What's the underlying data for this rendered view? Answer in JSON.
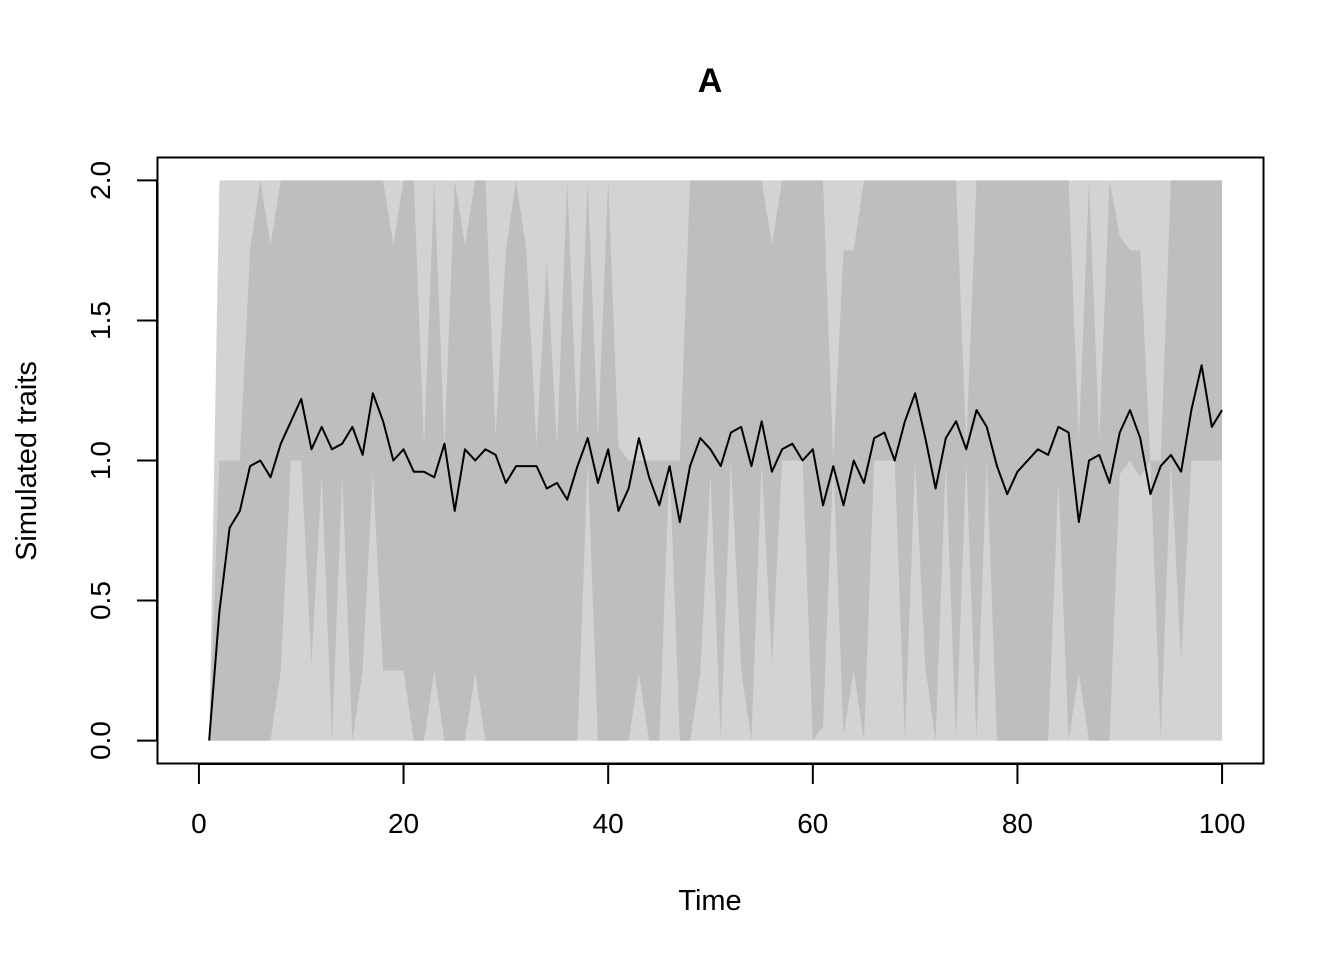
{
  "chart_data": {
    "type": "area",
    "title": "A",
    "xlabel": "Time",
    "ylabel": "Simulated traits",
    "xlim": [
      -4,
      104
    ],
    "ylim": [
      -0.08,
      2.08
    ],
    "x_ticks": [
      "0",
      "20",
      "40",
      "60",
      "80",
      "100"
    ],
    "y_ticks": [
      "0.0",
      "0.5",
      "1.0",
      "1.5",
      "2.0"
    ],
    "grid": false,
    "legend": "none",
    "colors": {
      "outer_band": "#d3d3d3",
      "inner_band": "#bebebe",
      "line": "#000000"
    },
    "x": [
      1,
      2,
      3,
      4,
      5,
      6,
      7,
      8,
      9,
      10,
      11,
      12,
      13,
      14,
      15,
      16,
      17,
      18,
      19,
      20,
      21,
      22,
      23,
      24,
      25,
      26,
      27,
      28,
      29,
      30,
      31,
      32,
      33,
      34,
      35,
      36,
      37,
      38,
      39,
      40,
      41,
      42,
      43,
      44,
      45,
      46,
      47,
      48,
      49,
      50,
      51,
      52,
      53,
      54,
      55,
      56,
      57,
      58,
      59,
      60,
      61,
      62,
      63,
      64,
      65,
      66,
      67,
      68,
      69,
      70,
      71,
      72,
      73,
      74,
      75,
      76,
      77,
      78,
      79,
      80,
      81,
      82,
      83,
      84,
      85,
      86,
      87,
      88,
      89,
      90,
      91,
      92,
      93,
      94,
      95,
      96,
      97,
      98,
      99,
      100
    ],
    "series": [
      {
        "name": "",
        "role": "band_min_max",
        "lower": [
          0,
          0,
          0,
          0,
          0,
          0,
          0,
          0,
          0,
          0,
          0,
          0,
          0,
          0,
          0,
          0,
          0,
          0,
          0,
          0,
          0,
          0,
          0,
          0,
          0,
          0,
          0,
          0,
          0,
          0,
          0,
          0,
          0,
          0,
          0,
          0,
          0,
          0,
          0,
          0,
          0,
          0,
          0,
          0,
          0,
          0,
          0,
          0,
          0,
          0,
          0,
          0,
          0,
          0,
          0,
          0,
          0,
          0,
          0,
          0,
          0,
          0,
          0,
          0,
          0,
          0,
          0,
          0,
          0,
          0,
          0,
          0,
          0,
          0,
          0,
          0,
          0,
          0,
          0,
          0,
          0,
          0,
          0,
          0,
          0,
          0,
          0,
          0,
          0,
          0,
          0,
          0,
          0,
          0,
          0,
          0,
          0,
          0,
          0,
          0
        ],
        "upper": [
          0,
          2,
          2,
          2,
          2,
          2,
          2,
          2,
          2,
          2,
          2,
          2,
          2,
          2,
          2,
          2,
          2,
          2,
          2,
          2,
          2,
          2,
          2,
          2,
          2,
          2,
          2,
          2,
          2,
          2,
          2,
          2,
          2,
          2,
          2,
          2,
          2,
          2,
          2,
          2,
          2,
          2,
          2,
          2,
          2,
          2,
          2,
          2,
          2,
          2,
          2,
          2,
          2,
          2,
          2,
          2,
          2,
          2,
          2,
          2,
          2,
          2,
          2,
          2,
          2,
          2,
          2,
          2,
          2,
          2,
          2,
          2,
          2,
          2,
          2,
          2,
          2,
          2,
          2,
          2,
          2,
          2,
          2,
          2,
          2,
          2,
          2,
          2,
          2,
          2,
          2,
          2,
          2,
          2,
          2,
          2,
          2,
          2,
          2,
          2
        ]
      },
      {
        "name": "",
        "role": "band_inner",
        "lower": [
          0,
          0,
          0,
          0,
          0,
          0,
          0,
          0.25,
          1,
          1,
          0.27,
          0.95,
          0,
          0.95,
          0,
          0.25,
          0.96,
          0.25,
          0.25,
          0.25,
          0,
          0,
          0.25,
          0,
          0,
          0,
          0.24,
          0,
          0,
          0,
          0,
          0,
          0,
          0,
          0,
          0,
          0,
          1,
          0,
          0,
          0,
          0,
          0.24,
          0,
          0,
          1,
          0,
          0,
          0.24,
          0.95,
          0,
          1,
          0.25,
          0,
          1,
          0.27,
          1,
          1,
          1,
          0,
          0.05,
          1,
          0.02,
          0.25,
          0,
          1,
          1,
          1,
          0,
          1,
          0.26,
          0,
          1,
          0,
          1,
          0,
          1,
          0,
          0,
          0,
          0,
          0,
          0,
          0.93,
          0,
          0.24,
          0,
          0,
          0,
          0.95,
          1,
          0.94,
          1,
          0,
          1,
          0.28,
          1,
          1,
          1,
          1
        ],
        "upper": [
          0,
          1,
          1,
          1,
          1.75,
          2,
          1.77,
          2,
          2,
          2,
          2,
          2,
          2,
          2,
          2,
          2,
          2,
          2,
          1.77,
          2,
          2,
          1.05,
          2,
          1.05,
          2,
          1.77,
          2,
          2,
          1.08,
          1.75,
          2,
          1.75,
          1.05,
          1.72,
          1.05,
          2,
          1.08,
          2,
          1.08,
          2,
          1.05,
          1,
          1,
          1,
          1,
          1,
          1,
          2,
          2,
          2,
          2,
          2,
          2,
          2,
          2,
          1.77,
          2,
          2,
          2,
          2,
          2,
          1,
          1.75,
          1.75,
          2,
          2,
          2,
          2,
          2,
          2,
          2,
          2,
          2,
          2,
          1.05,
          2,
          2,
          2,
          2,
          2,
          2,
          2,
          2,
          2,
          2,
          1.07,
          2,
          1.07,
          2,
          1.8,
          1.75,
          1.75,
          1,
          1,
          2,
          2,
          2,
          2,
          2,
          2
        ]
      },
      {
        "name": "",
        "role": "mean_line",
        "values": [
          0,
          0.46,
          0.76,
          0.82,
          0.98,
          1.0,
          0.94,
          1.06,
          1.14,
          1.22,
          1.04,
          1.12,
          1.04,
          1.06,
          1.12,
          1.02,
          1.24,
          1.14,
          1.0,
          1.04,
          0.96,
          0.96,
          0.94,
          1.06,
          0.82,
          1.04,
          1.0,
          1.04,
          1.02,
          0.92,
          0.98,
          0.98,
          0.98,
          0.9,
          0.92,
          0.86,
          0.98,
          1.08,
          0.92,
          1.04,
          0.82,
          0.9,
          1.08,
          0.94,
          0.84,
          0.98,
          0.78,
          0.98,
          1.08,
          1.04,
          0.98,
          1.1,
          1.12,
          0.98,
          1.14,
          0.96,
          1.04,
          1.06,
          1.0,
          1.04,
          0.84,
          0.98,
          0.84,
          1.0,
          0.92,
          1.08,
          1.1,
          1.0,
          1.14,
          1.24,
          1.08,
          0.9,
          1.08,
          1.14,
          1.04,
          1.18,
          1.12,
          0.98,
          0.88,
          0.96,
          1.0,
          1.04,
          1.02,
          1.12,
          1.1,
          0.78,
          1.0,
          1.02,
          0.92,
          1.1,
          1.18,
          1.08,
          0.88,
          0.98,
          1.02,
          0.96,
          1.18,
          1.34,
          1.12,
          1.18
        ]
      }
    ]
  }
}
